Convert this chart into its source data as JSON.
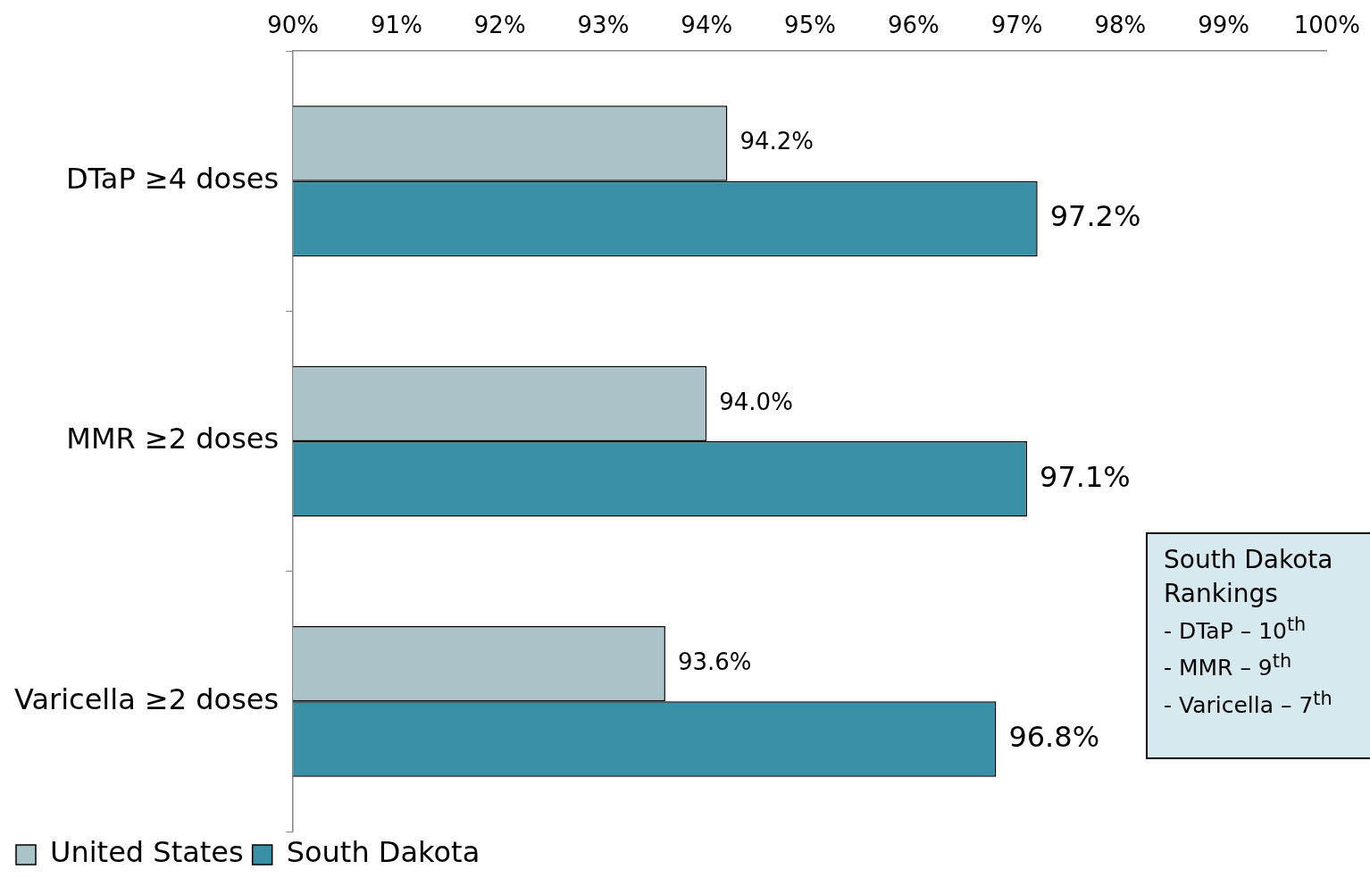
{
  "chart_data": {
    "type": "bar",
    "orientation": "horizontal",
    "categories": [
      "DTaP ≥4 doses",
      "MMR ≥2 doses",
      "Varicella ≥2 doses"
    ],
    "series": [
      {
        "name": "United States",
        "color": "#a9c3c9",
        "values": [
          94.2,
          94.0,
          93.6
        ],
        "value_labels": [
          "94.2%",
          "94.0%",
          "93.6%"
        ]
      },
      {
        "name": "South Dakota",
        "color": "#3a91a7",
        "values": [
          97.2,
          97.1,
          96.8
        ],
        "value_labels": [
          "97.2%",
          "97.1%",
          "96.8%"
        ]
      }
    ],
    "xlim": [
      90,
      100
    ],
    "xticks": [
      {
        "value": 90,
        "label": "90%"
      },
      {
        "value": 91,
        "label": "91%"
      },
      {
        "value": 92,
        "label": "92%"
      },
      {
        "value": 93,
        "label": "93%"
      },
      {
        "value": 94,
        "label": "94%"
      },
      {
        "value": 95,
        "label": "95%"
      },
      {
        "value": 96,
        "label": "96%"
      },
      {
        "value": 97,
        "label": "97%"
      },
      {
        "value": 98,
        "label": "98%"
      },
      {
        "value": 99,
        "label": "99%"
      },
      {
        "value": 100,
        "label": "100%"
      }
    ],
    "grid": false,
    "legend": "bottom left",
    "annotations": [
      "South Dakota Rankings",
      "- DTaP – 10$^{th}$",
      "- MMR – 9$^{th}$",
      "- Varicella – 7$^{th}$"
    ]
  }
}
